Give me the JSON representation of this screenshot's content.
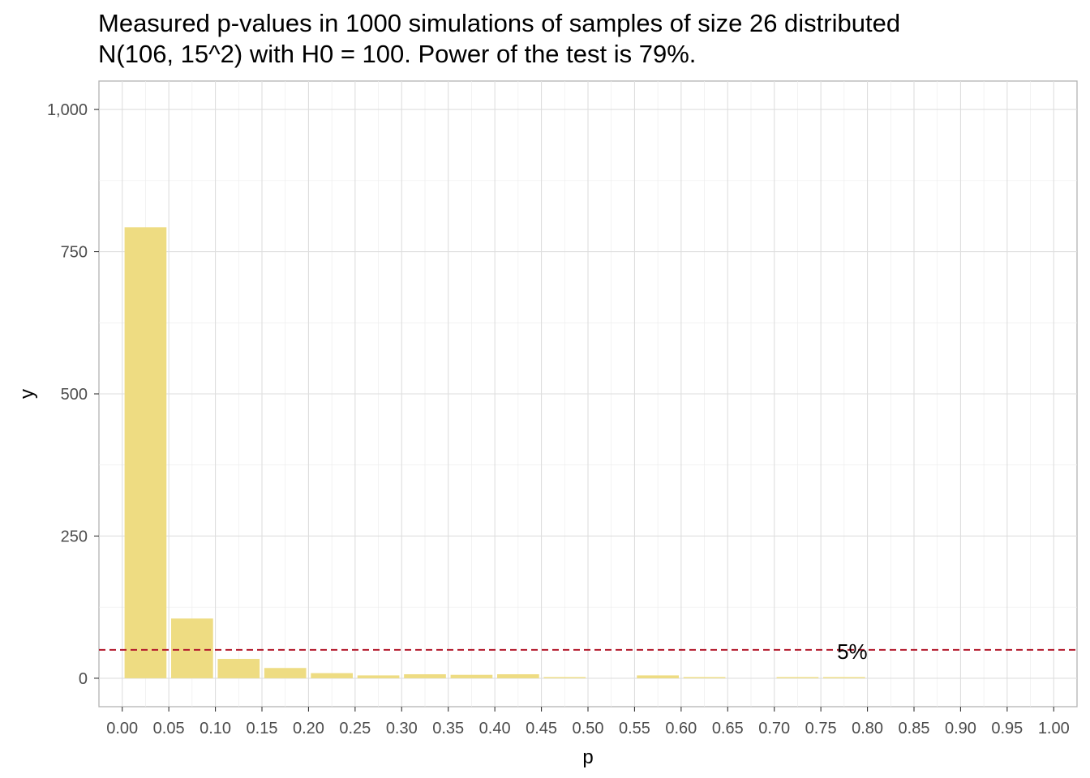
{
  "chart_data": {
    "type": "bar",
    "title": "Measured p-values in 1000 simulations of samples of size 26 distributed\nN(106, 15^2) with H0 = 100. Power of the test is 79%.",
    "xlabel": "p",
    "ylabel": "y",
    "bin_width": 0.05,
    "x_ticks": [
      "0.00",
      "0.05",
      "0.10",
      "0.15",
      "0.20",
      "0.25",
      "0.30",
      "0.35",
      "0.40",
      "0.45",
      "0.50",
      "0.55",
      "0.60",
      "0.65",
      "0.70",
      "0.75",
      "0.80",
      "0.85",
      "0.90",
      "0.95",
      "1.00"
    ],
    "x_tick_values": [
      0.0,
      0.05,
      0.1,
      0.15,
      0.2,
      0.25,
      0.3,
      0.35,
      0.4,
      0.45,
      0.5,
      0.55,
      0.6,
      0.65,
      0.7,
      0.75,
      0.8,
      0.85,
      0.9,
      0.95,
      1.0
    ],
    "bin_starts": [
      0.0,
      0.05,
      0.1,
      0.15,
      0.2,
      0.25,
      0.3,
      0.35,
      0.4,
      0.45,
      0.5,
      0.55,
      0.6,
      0.65,
      0.7,
      0.75
    ],
    "values": [
      793,
      105,
      34,
      18,
      9,
      5,
      7,
      6,
      7,
      2,
      0,
      5,
      2,
      0,
      2,
      2
    ],
    "y_ticks": [
      "0",
      "250",
      "500",
      "750",
      "1,000"
    ],
    "y_tick_values": [
      0,
      250,
      500,
      750,
      1000
    ],
    "xlim": [
      -0.025,
      1.025
    ],
    "ylim": [
      -50,
      1050
    ],
    "grid": true,
    "bar_color": "#EEDC82",
    "reference_line": {
      "y": 50,
      "label": "5%",
      "label_x": 0.775,
      "color": "#B2182B",
      "style": "dashed"
    }
  }
}
